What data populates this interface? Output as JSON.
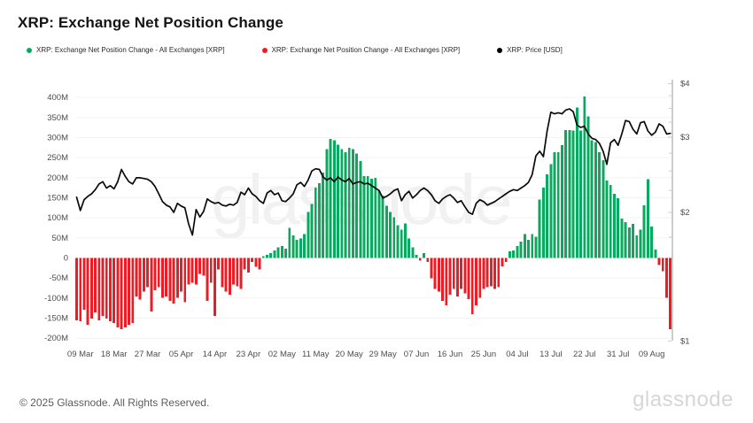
{
  "page": {
    "title": "XRP: Exchange Net Position Change"
  },
  "legend": [
    {
      "label": "XRP: Exchange Net Position Change - All Exchanges [XRP]",
      "color": "#09a95e"
    },
    {
      "label": "XRP: Exchange Net Position Change - All Exchanges [XRP]",
      "color": "#ed1c24"
    },
    {
      "label": "XRP: Price [USD]",
      "color": "#000000"
    }
  ],
  "watermark_text": "glassnode",
  "footer": {
    "copyright": "© 2025 Glassnode. All Rights Reserved.",
    "logo_text": "glassnode"
  },
  "colors": {
    "positive": "#09a95e",
    "negative": "#ed1c24",
    "price_line": "#0b0b0b",
    "grid": "#f2f2f2",
    "axis_text": "#4d4d4d",
    "right_axis_line": "#cccccc"
  },
  "chart_data": {
    "type": "bar+line",
    "title": "XRP: Exchange Net Position Change",
    "grid": true,
    "legend_position": "top",
    "bar_ylim": [
      -200,
      400
    ],
    "price_ylim": [
      1,
      4
    ],
    "price_scale": "log",
    "x_unit": "day",
    "xticks": [
      {
        "label": "09 Mar",
        "index": 1
      },
      {
        "label": "18 Mar",
        "index": 10
      },
      {
        "label": "27 Mar",
        "index": 19
      },
      {
        "label": "05 Apr",
        "index": 28
      },
      {
        "label": "14 Apr",
        "index": 37
      },
      {
        "label": "23 Apr",
        "index": 46
      },
      {
        "label": "02 May",
        "index": 55
      },
      {
        "label": "11 May",
        "index": 64
      },
      {
        "label": "20 May",
        "index": 73
      },
      {
        "label": "29 May",
        "index": 82
      },
      {
        "label": "07 Jun",
        "index": 91
      },
      {
        "label": "16 Jun",
        "index": 100
      },
      {
        "label": "25 Jun",
        "index": 109
      },
      {
        "label": "04 Jul",
        "index": 118
      },
      {
        "label": "13 Jul",
        "index": 127
      },
      {
        "label": "22 Jul",
        "index": 136
      },
      {
        "label": "31 Jul",
        "index": 145
      },
      {
        "label": "09 Aug",
        "index": 154
      }
    ],
    "yticks_left": {
      "unit": "M XRP",
      "labels": [
        "400M",
        "350M",
        "300M",
        "250M",
        "200M",
        "150M",
        "100M",
        "50M",
        "0",
        "-50M",
        "-100M",
        "-150M",
        "-200M"
      ],
      "values": [
        400,
        350,
        300,
        250,
        200,
        150,
        100,
        50,
        0,
        -50,
        -100,
        -150,
        -200
      ]
    },
    "yticks_right": {
      "unit": "USD",
      "labels": [
        "$4",
        "$3",
        "$2",
        "$1"
      ],
      "values": [
        4,
        3,
        2,
        1
      ],
      "minor_values": [
        1.25,
        1.5,
        1.75,
        2.25,
        2.5,
        2.75,
        3.25,
        3.5,
        3.75
      ]
    },
    "series": [
      {
        "name": "XRP: Exchange Net Position Change - All Exchanges [XRP]",
        "type": "bar",
        "unit": "M XRP",
        "values": [
          -155,
          -158,
          -129,
          -166,
          -151,
          -136,
          -155,
          -144,
          -151,
          -158,
          -162,
          -173,
          -177,
          -173,
          -166,
          -162,
          -96,
          -104,
          -84,
          -73,
          -133,
          -81,
          -73,
          -99,
          -96,
          -107,
          -114,
          -99,
          -84,
          -110,
          -66,
          -62,
          -66,
          -40,
          -44,
          -107,
          -62,
          -144,
          -29,
          -73,
          -84,
          -92,
          -66,
          -70,
          -77,
          -29,
          -36,
          -10,
          -22,
          -29,
          4,
          8,
          12,
          19,
          27,
          30,
          23,
          75,
          56,
          45,
          49,
          60,
          115,
          134,
          175,
          186,
          213,
          271,
          297,
          293,
          282,
          271,
          264,
          275,
          271,
          260,
          241,
          204,
          204,
          197,
          200,
          167,
          156,
          130,
          115,
          101,
          82,
          71,
          86,
          49,
          27,
          8,
          -7,
          12,
          -10,
          -51,
          -77,
          -84,
          -107,
          -118,
          -92,
          -77,
          -96,
          -77,
          -88,
          -103,
          -140,
          -118,
          -99,
          -77,
          -73,
          -70,
          -77,
          -73,
          -21,
          -10,
          16,
          19,
          30,
          41,
          60,
          45,
          60,
          53,
          146,
          175,
          208,
          234,
          264,
          264,
          281,
          319,
          319,
          318,
          375,
          318,
          402,
          353,
          293,
          289,
          264,
          244,
          193,
          182,
          160,
          149,
          98,
          89,
          76,
          85,
          56,
          71,
          131,
          196,
          78,
          21,
          -18,
          -33,
          -99,
          -177
        ]
      },
      {
        "name": "XRP: Price [USD]",
        "type": "line",
        "unit": "USD",
        "values": [
          2.17,
          2.02,
          2.14,
          2.18,
          2.21,
          2.26,
          2.33,
          2.36,
          2.28,
          2.31,
          2.27,
          2.36,
          2.52,
          2.43,
          2.36,
          2.33,
          2.41,
          2.41,
          2.4,
          2.39,
          2.36,
          2.3,
          2.21,
          2.12,
          2.08,
          2.06,
          2.0,
          2.1,
          2.07,
          2.05,
          1.88,
          1.77,
          2.03,
          1.95,
          2.01,
          2.15,
          2.12,
          2.1,
          2.11,
          2.08,
          2.07,
          2.09,
          2.08,
          2.11,
          2.23,
          2.2,
          2.28,
          2.21,
          2.18,
          2.13,
          2.1,
          2.22,
          2.25,
          2.2,
          2.22,
          2.13,
          2.12,
          2.16,
          2.21,
          2.32,
          2.35,
          2.3,
          2.38,
          2.5,
          2.53,
          2.52,
          2.42,
          2.38,
          2.41,
          2.36,
          2.42,
          2.38,
          2.36,
          2.4,
          2.33,
          2.35,
          2.36,
          2.33,
          2.34,
          2.31,
          2.28,
          2.25,
          2.16,
          2.18,
          2.21,
          2.25,
          2.27,
          2.13,
          2.2,
          2.24,
          2.16,
          2.2,
          2.25,
          2.28,
          2.25,
          2.2,
          2.13,
          2.1,
          2.15,
          2.18,
          2.2,
          2.16,
          2.11,
          2.13,
          2.06,
          2.0,
          1.98,
          2.1,
          2.14,
          2.12,
          2.08,
          2.1,
          2.12,
          2.15,
          2.18,
          2.21,
          2.24,
          2.26,
          2.25,
          2.28,
          2.31,
          2.35,
          2.45,
          2.71,
          2.78,
          2.7,
          3.1,
          3.43,
          3.4,
          3.42,
          3.4,
          3.47,
          3.49,
          3.44,
          3.2,
          3.16,
          3.18,
          3.05,
          2.98,
          2.96,
          2.9,
          2.78,
          2.59,
          2.91,
          2.96,
          2.87,
          3.05,
          3.28,
          3.26,
          3.13,
          3.05,
          3.24,
          3.26,
          3.1,
          3.03,
          3.08,
          3.22,
          3.18,
          3.05,
          3.06
        ]
      }
    ]
  }
}
